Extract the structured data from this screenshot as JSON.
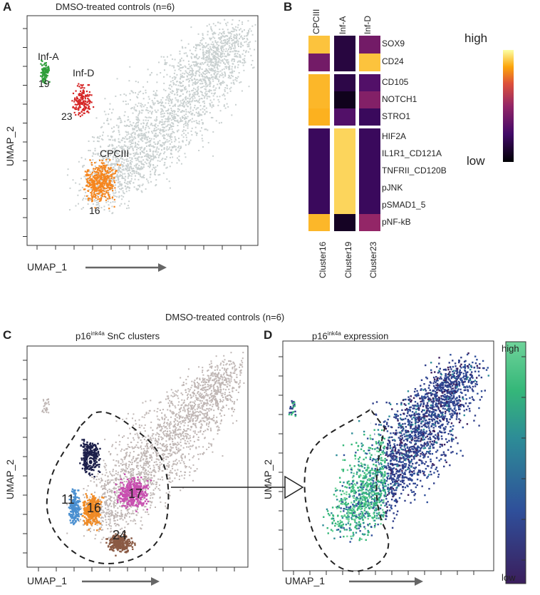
{
  "panels": {
    "a": {
      "letter": "A",
      "title": "DMSO-treated controls (n=6)",
      "xlabel": "UMAP_1",
      "ylabel": "UMAP_2",
      "clusters": [
        {
          "name": "Inf-A",
          "number": "19",
          "color": "#2e9e3a"
        },
        {
          "name": "Inf-D",
          "number": "23",
          "color": "#d62626"
        },
        {
          "name": "CPCIII",
          "number": "16",
          "color": "#f5861f"
        }
      ],
      "background_color": "#c9d0d0"
    },
    "b": {
      "letter": "B",
      "columns": [
        "CPCIII",
        "Inf-A",
        "Inf-D"
      ],
      "clusters": [
        "Cluster16",
        "Cluster19",
        "Cluster23"
      ],
      "markers": [
        "SOX9",
        "CD24",
        "CD105",
        "NOTCH1",
        "STRO1",
        "HIF2A",
        "IL1R1_CD121A",
        "TNFRII_CD120B",
        "pJNK",
        "pSMAD1_5",
        "pNF-kB"
      ],
      "legend_high": "high",
      "legend_low": "low"
    },
    "bottom_title": "DMSO-treated controls (n=6)",
    "c": {
      "letter": "C",
      "title_prefix": "p16",
      "title_sup": "ink4a",
      "title_suffix": " SnC clusters",
      "xlabel": "UMAP_1",
      "ylabel": "UMAP_2",
      "clusters": [
        {
          "number": "6",
          "color": "#1c1f4a"
        },
        {
          "number": "11",
          "color": "#4a8fd0"
        },
        {
          "number": "16",
          "color": "#f08a24"
        },
        {
          "number": "17",
          "color": "#c84fb0"
        },
        {
          "number": "24",
          "color": "#8a5a44"
        }
      ]
    },
    "d": {
      "letter": "D",
      "title_prefix": "p16",
      "title_sup": "ink4a",
      "title_suffix": " expression",
      "xlabel": "UMAP_1",
      "ylabel": "UMAP_2",
      "legend_high": "high",
      "legend_low": "low"
    }
  },
  "chart_data": [
    {
      "type": "scatter",
      "title": "DMSO-treated controls (n=6)",
      "xlabel": "UMAP_1",
      "ylabel": "UMAP_2",
      "highlighted_clusters": [
        {
          "label": "Inf-A",
          "cluster": 19
        },
        {
          "label": "Inf-D",
          "cluster": 23
        },
        {
          "label": "CPCIII",
          "cluster": 16
        }
      ]
    },
    {
      "type": "heatmap",
      "rows": [
        "SOX9",
        "CD24",
        "CD105",
        "NOTCH1",
        "STRO1",
        "HIF2A",
        "IL1R1_CD121A",
        "TNFRII_CD120B",
        "pJNK",
        "pSMAD1_5",
        "pNF-kB"
      ],
      "columns": [
        "Cluster16",
        "Cluster19",
        "Cluster23"
      ],
      "values": [
        [
          0.9,
          0.15,
          0.4
        ],
        [
          0.4,
          0.15,
          0.9
        ],
        [
          0.88,
          0.17,
          0.3
        ],
        [
          0.88,
          0.06,
          0.45
        ],
        [
          0.87,
          0.3,
          0.22
        ],
        [
          0.22,
          0.93,
          0.22
        ],
        [
          0.22,
          0.93,
          0.22
        ],
        [
          0.22,
          0.93,
          0.22
        ],
        [
          0.22,
          0.93,
          0.22
        ],
        [
          0.22,
          0.93,
          0.22
        ],
        [
          0.88,
          0.08,
          0.5
        ]
      ],
      "colorscale": "inferno",
      "legend": {
        "high": "high",
        "low": "low"
      }
    },
    {
      "type": "scatter",
      "title": "p16ink4a SnC clusters",
      "xlabel": "UMAP_1",
      "ylabel": "UMAP_2",
      "clusters": [
        6,
        11,
        16,
        17,
        24
      ]
    },
    {
      "type": "scatter",
      "title": "p16ink4a expression",
      "xlabel": "UMAP_1",
      "ylabel": "UMAP_2",
      "colorscale": "viridis",
      "legend": {
        "high": "high",
        "low": "low"
      }
    }
  ]
}
